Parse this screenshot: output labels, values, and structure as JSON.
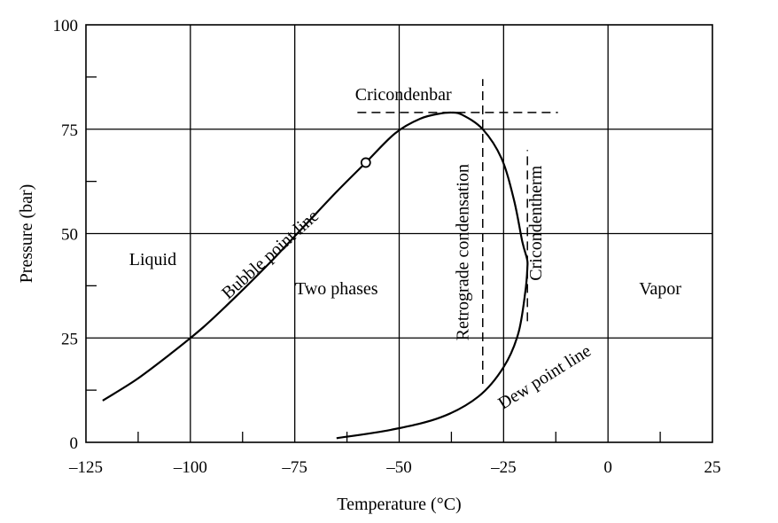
{
  "chart_data": {
    "type": "line",
    "xlabel": "Temperature (°C)",
    "ylabel": "Pressure (bar)",
    "xlim": [
      -125,
      25
    ],
    "ylim": [
      0,
      100
    ],
    "grid": true,
    "x_ticks": [
      -125,
      -100,
      -75,
      -50,
      -25,
      0,
      25
    ],
    "x_tick_labels": [
      "–125",
      "–100",
      "–75",
      "–50",
      "–25",
      "0",
      "25"
    ],
    "y_ticks": [
      0,
      25,
      50,
      75,
      100
    ],
    "y_tick_labels": [
      "0",
      "25",
      "50",
      "75",
      "100"
    ],
    "series": [
      {
        "name": "Bubble point line",
        "x": [
          -121,
          -113,
          -105,
          -97,
          -89,
          -81,
          -73,
          -65,
          -58,
          -51,
          -45,
          -40,
          -37.5
        ],
        "y": [
          10,
          15,
          21,
          27.5,
          35,
          43,
          51.5,
          60,
          67,
          74,
          77.5,
          78.8,
          79
        ]
      },
      {
        "name": "Dew point line",
        "x": [
          -37.5,
          -35,
          -30,
          -25.5,
          -22.5,
          -20.5,
          -19.4,
          -19.3,
          -19.8,
          -21.5,
          -25,
          -31,
          -40,
          -52,
          -65
        ],
        "y": [
          79,
          78.5,
          75,
          68,
          58,
          48,
          44,
          42,
          36,
          26,
          18,
          11,
          6,
          3,
          1
        ]
      }
    ],
    "reference_lines": [
      {
        "name": "Cricondenbar",
        "y": 79,
        "x_range": [
          -60,
          -12
        ]
      },
      {
        "name": "Retrograde condensation",
        "x": -30,
        "y_range": [
          14,
          87
        ]
      },
      {
        "name": "Cricondentherm",
        "x": -19.3,
        "y_range": [
          29,
          70
        ]
      }
    ],
    "points": [
      {
        "x": -58,
        "y": 67,
        "marker": "open-circle"
      }
    ],
    "annotations": {
      "liquid": "Liquid",
      "two_phases": "Two phases",
      "vapor": "Vapor",
      "cricondenbar": "Cricondenbar",
      "bubble_point_line": "Bubble point line",
      "dew_point_line": "Dew point line",
      "retrograde_condensation": "Retrograde condensation",
      "cricondentherm": "Cricondentherm"
    }
  }
}
